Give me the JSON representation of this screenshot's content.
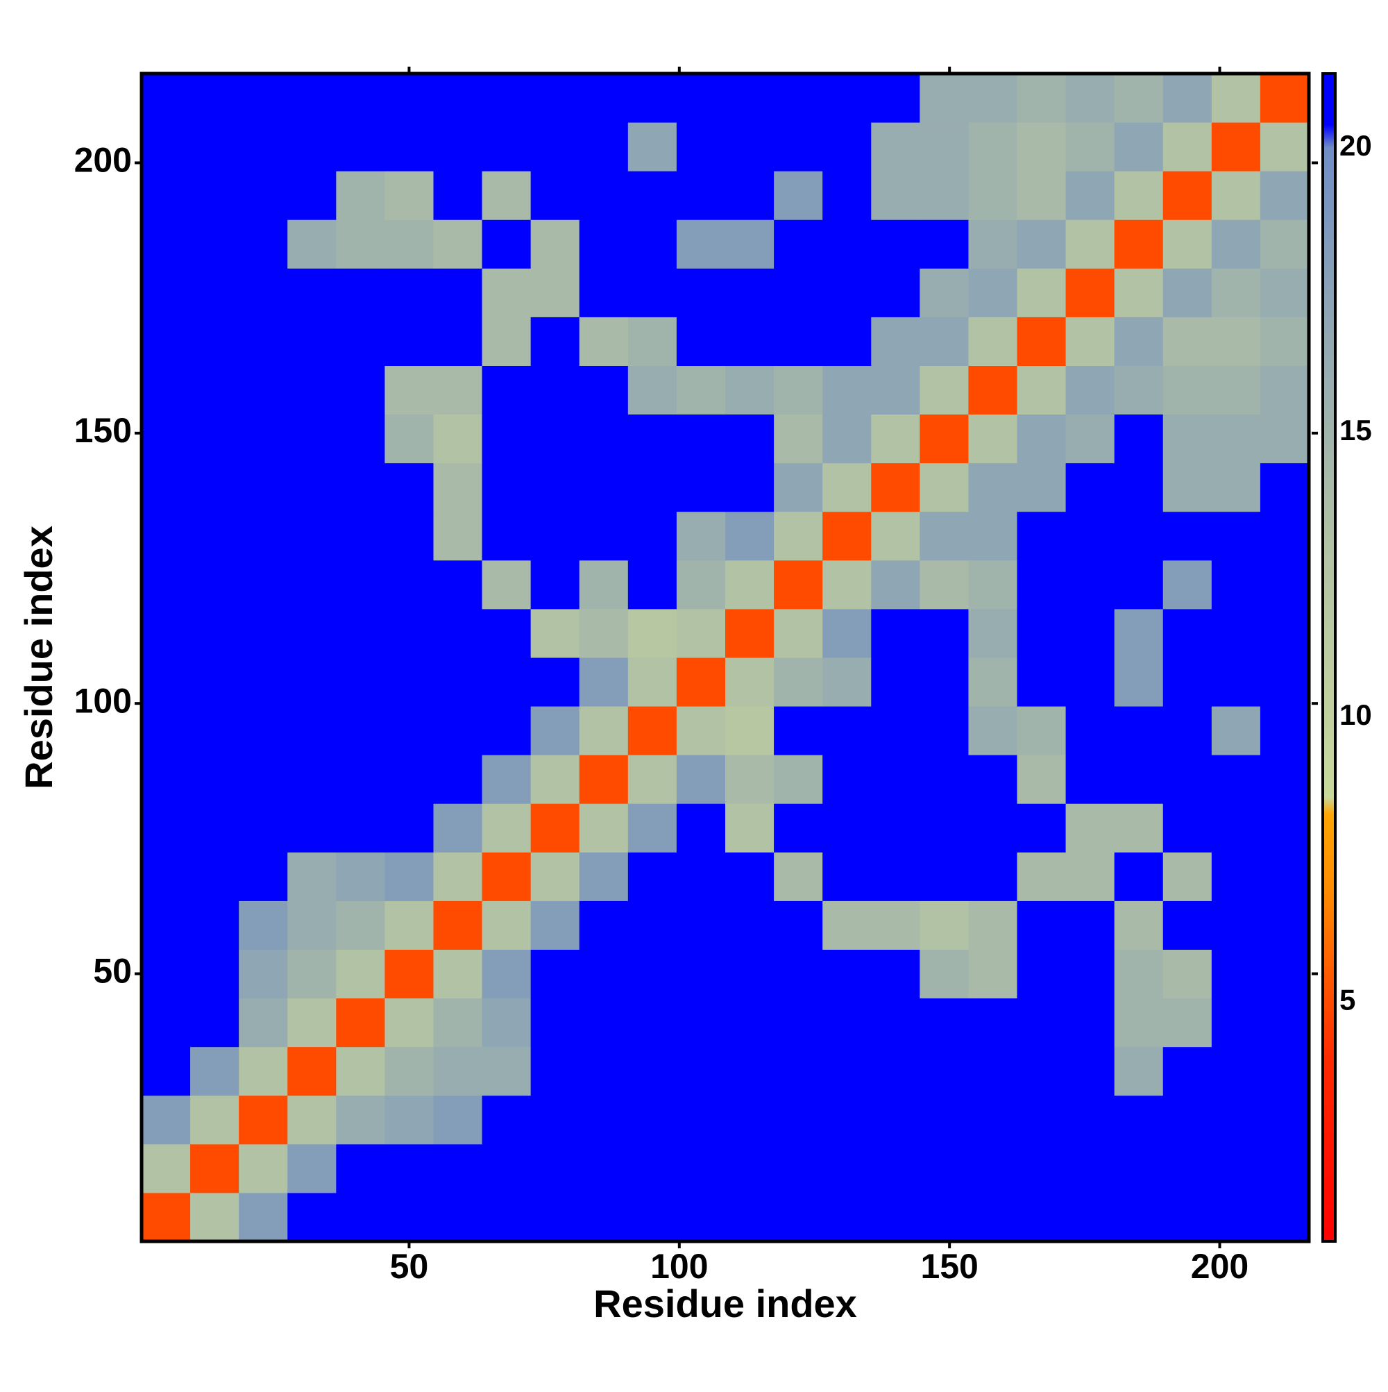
{
  "chart_data": {
    "type": "heatmap",
    "xlabel": "Residue index",
    "ylabel": "Residue index",
    "xlim": [
      0.5,
      216.5
    ],
    "ylim": [
      0.5,
      216.5
    ],
    "xticks": [
      50,
      100,
      150,
      200
    ],
    "yticks": [
      50,
      100,
      150,
      200
    ],
    "xbins": [
      0.5,
      9.5,
      18.5,
      27.5,
      36.5,
      45.5,
      54.5,
      63.5,
      72.5,
      81.5,
      90.5,
      99.5,
      108.5,
      117.5,
      126.5,
      135.5,
      144.5,
      153.5,
      162.5,
      171.5,
      180.5,
      189.5,
      198.5,
      207.5,
      216.5
    ],
    "ybins": [
      0.5,
      9.5,
      18.5,
      27.5,
      36.5,
      45.5,
      54.5,
      63.5,
      72.5,
      81.5,
      90.5,
      99.5,
      108.5,
      117.5,
      126.5,
      135.5,
      144.5,
      153.5,
      162.5,
      171.5,
      180.5,
      189.5,
      198.5,
      207.5,
      216.5
    ],
    "clim": [
      0.8,
      21.3
    ],
    "cticks": [
      5,
      10,
      15,
      20
    ],
    "colorscale": [
      [
        0.8,
        "#ff0000"
      ],
      [
        4,
        "#ff2a00"
      ],
      [
        7,
        "#ff8c00"
      ],
      [
        8.3,
        "#ffa500"
      ],
      [
        8.6,
        "#c9d99b"
      ],
      [
        13,
        "#b2c2a4"
      ],
      [
        17,
        "#8fa6b4"
      ],
      [
        20,
        "#6f8ec6"
      ],
      [
        20.4,
        "#0000ff"
      ],
      [
        21.3,
        "#0000ff"
      ]
    ],
    "z": [
      [
        5,
        13,
        18,
        21,
        21,
        21,
        21,
        21,
        21,
        21,
        21,
        21,
        21,
        21,
        21,
        21,
        21,
        21,
        21,
        21,
        21,
        21,
        21,
        21
      ],
      [
        13,
        5,
        13,
        18,
        21,
        21,
        21,
        21,
        21,
        21,
        21,
        21,
        21,
        21,
        21,
        21,
        21,
        21,
        21,
        21,
        21,
        21,
        21,
        21
      ],
      [
        18,
        13,
        5,
        13,
        16,
        17,
        18,
        21,
        21,
        21,
        21,
        21,
        21,
        21,
        21,
        21,
        21,
        21,
        21,
        21,
        21,
        21,
        21,
        21
      ],
      [
        21,
        18,
        13,
        5,
        13,
        15,
        16,
        16,
        21,
        21,
        21,
        21,
        21,
        21,
        21,
        21,
        21,
        21,
        21,
        21,
        16,
        21,
        21,
        21
      ],
      [
        21,
        21,
        16,
        13,
        5,
        13,
        15,
        17,
        21,
        21,
        21,
        21,
        21,
        21,
        21,
        21,
        21,
        21,
        21,
        21,
        15,
        15,
        21,
        21
      ],
      [
        21,
        21,
        17,
        15,
        13,
        5,
        13,
        18,
        21,
        21,
        21,
        21,
        21,
        21,
        21,
        21,
        15,
        14,
        21,
        21,
        15,
        14,
        21,
        21
      ],
      [
        21,
        21,
        18,
        16,
        15,
        13,
        5,
        13,
        18,
        21,
        21,
        21,
        21,
        21,
        14,
        14,
        13,
        14,
        21,
        21,
        14,
        21,
        21,
        21
      ],
      [
        21,
        21,
        21,
        16,
        17,
        18,
        13,
        5,
        13,
        18,
        21,
        21,
        21,
        14,
        21,
        21,
        21,
        21,
        14,
        14,
        21,
        14,
        21,
        21
      ],
      [
        21,
        21,
        21,
        21,
        21,
        21,
        18,
        13,
        5,
        13,
        18,
        21,
        13,
        21,
        21,
        21,
        21,
        21,
        21,
        14,
        14,
        21,
        21,
        21
      ],
      [
        21,
        21,
        21,
        21,
        21,
        21,
        21,
        18,
        13,
        5,
        13,
        18,
        14,
        15,
        21,
        21,
        21,
        21,
        14,
        21,
        21,
        21,
        21,
        21
      ],
      [
        21,
        21,
        21,
        21,
        21,
        21,
        21,
        21,
        18,
        13,
        5,
        13,
        12,
        21,
        21,
        21,
        21,
        16,
        15,
        21,
        21,
        21,
        17,
        21
      ],
      [
        21,
        21,
        21,
        21,
        21,
        21,
        21,
        21,
        21,
        18,
        13,
        5,
        13,
        15,
        16,
        21,
        21,
        15,
        21,
        21,
        18,
        21,
        21,
        21
      ],
      [
        21,
        21,
        21,
        21,
        21,
        21,
        21,
        21,
        13,
        14,
        12,
        13,
        5,
        13,
        18,
        21,
        21,
        16,
        21,
        21,
        18,
        21,
        21,
        21
      ],
      [
        21,
        21,
        21,
        21,
        21,
        21,
        21,
        14,
        21,
        15,
        21,
        15,
        13,
        5,
        13,
        17,
        14,
        15,
        21,
        21,
        21,
        18,
        21,
        21
      ],
      [
        21,
        21,
        21,
        21,
        21,
        21,
        14,
        21,
        21,
        21,
        21,
        16,
        18,
        13,
        5,
        13,
        17,
        17,
        21,
        21,
        21,
        21,
        21,
        21
      ],
      [
        21,
        21,
        21,
        21,
        21,
        21,
        14,
        21,
        21,
        21,
        21,
        21,
        21,
        17,
        13,
        5,
        13,
        17,
        17,
        21,
        21,
        16,
        16,
        21
      ],
      [
        21,
        21,
        21,
        21,
        21,
        15,
        13,
        21,
        21,
        21,
        21,
        21,
        21,
        14,
        17,
        13,
        5,
        13,
        17,
        16,
        21,
        16,
        16,
        16
      ],
      [
        21,
        21,
        21,
        21,
        21,
        14,
        14,
        21,
        21,
        21,
        16,
        15,
        16,
        15,
        17,
        17,
        13,
        5,
        13,
        17,
        16,
        15,
        15,
        16
      ],
      [
        21,
        21,
        21,
        21,
        21,
        21,
        21,
        14,
        21,
        14,
        15,
        21,
        21,
        21,
        21,
        17,
        17,
        13,
        5,
        13,
        17,
        14,
        14,
        15
      ],
      [
        21,
        21,
        21,
        21,
        21,
        21,
        21,
        14,
        14,
        21,
        21,
        21,
        21,
        21,
        21,
        21,
        16,
        17,
        13,
        5,
        13,
        17,
        15,
        16
      ],
      [
        21,
        21,
        21,
        16,
        15,
        15,
        14,
        21,
        14,
        21,
        21,
        18,
        18,
        21,
        21,
        21,
        21,
        16,
        17,
        13,
        5,
        13,
        17,
        15
      ],
      [
        21,
        21,
        21,
        21,
        15,
        14,
        21,
        14,
        21,
        21,
        21,
        21,
        21,
        18,
        21,
        16,
        16,
        15,
        14,
        17,
        13,
        5,
        13,
        17
      ],
      [
        21,
        21,
        21,
        21,
        21,
        21,
        21,
        21,
        21,
        21,
        17,
        21,
        21,
        21,
        21,
        16,
        16,
        15,
        14,
        15,
        17,
        13,
        5,
        13
      ],
      [
        21,
        21,
        21,
        21,
        21,
        21,
        21,
        21,
        21,
        21,
        21,
        21,
        21,
        21,
        21,
        21,
        16,
        16,
        15,
        16,
        15,
        17,
        13,
        5
      ]
    ]
  }
}
